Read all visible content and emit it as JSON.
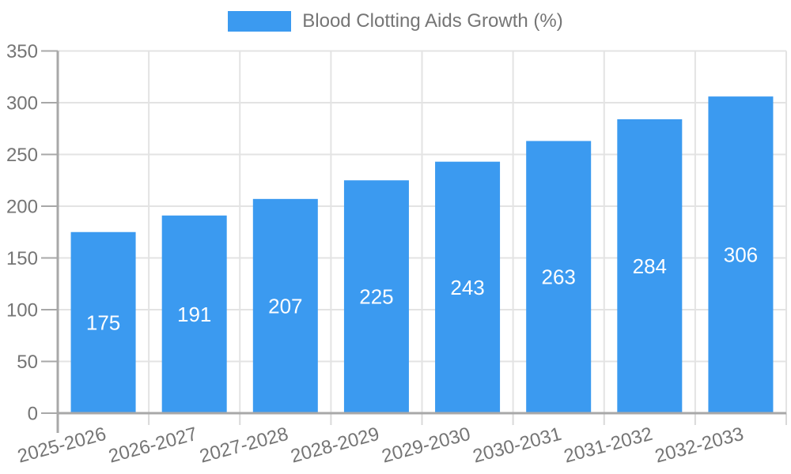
{
  "chart_data": {
    "type": "bar",
    "title": "Blood Clotting Aids Growth (%)",
    "legend": {
      "label": "Blood Clotting Aids Growth (%)",
      "position": "top-center"
    },
    "categories": [
      "2025-2026",
      "2026-2027",
      "2027-2028",
      "2028-2029",
      "2029-2030",
      "2030-2031",
      "2031-2032",
      "2032-2033"
    ],
    "values": [
      175,
      191,
      207,
      225,
      243,
      263,
      284,
      306
    ],
    "value_labels": [
      "175",
      "191",
      "207",
      "225",
      "243",
      "263",
      "284",
      "306"
    ],
    "xlabel": "",
    "ylabel": "",
    "ylim": [
      0,
      350
    ],
    "ytick_step": 50,
    "ytick_labels": [
      "0",
      "50",
      "100",
      "150",
      "200",
      "250",
      "300",
      "350"
    ],
    "grid": "on",
    "x_label_rotation_deg": -15,
    "colors": {
      "bar": "#3b9af0",
      "gridline": "#e3e3e3",
      "axis": "#a8a8a8",
      "x_tick": "#d9d9d9",
      "tick_text": "#757575",
      "value_label_text": "#ffffff",
      "background": "#ffffff"
    }
  }
}
